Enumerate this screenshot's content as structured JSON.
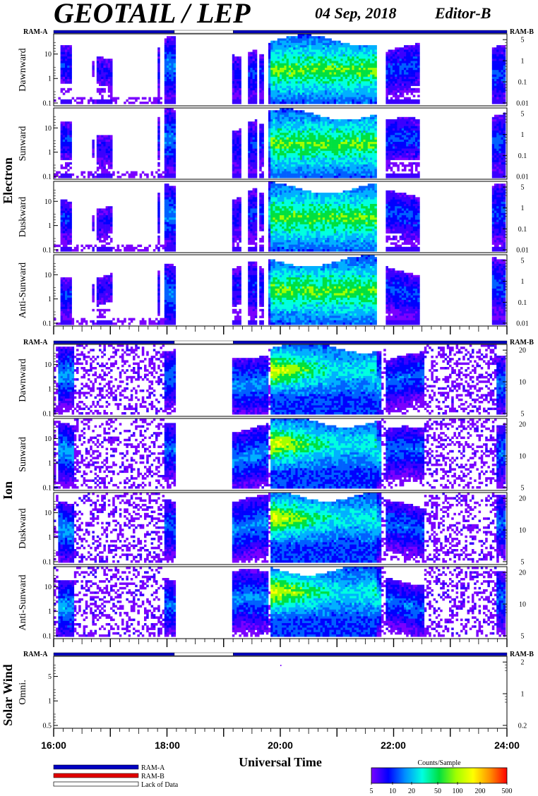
{
  "header": {
    "title": "GEOTAIL / LEP",
    "date": "04 Sep, 2018",
    "editor": "Editor-B"
  },
  "labels": {
    "ram_a": "RAM-A",
    "ram_b": "RAM-B",
    "x_axis_title": "Universal Time",
    "colorbar_title": "Counts/Sample"
  },
  "legend": [
    {
      "label": "RAM-A",
      "color": "#0000c0"
    },
    {
      "label": "RAM-B",
      "color": "#e00000"
    },
    {
      "label": "Lack of Data",
      "color": "#ffffff"
    }
  ],
  "chart_data": {
    "type": "heatmap",
    "x_ticks": [
      "16:00",
      "18:00",
      "20:00",
      "22:00",
      "24:00"
    ],
    "x_range_hours": [
      16,
      24
    ],
    "groups": [
      {
        "name": "Electron",
        "status_bar": [
          {
            "start": 16.0,
            "end": 18.13,
            "mode": "RAM-A"
          },
          {
            "start": 18.13,
            "end": 19.17,
            "mode": "Lack of Data"
          },
          {
            "start": 19.17,
            "end": 24.0,
            "mode": "RAM-A"
          }
        ],
        "panels": [
          {
            "name": "Dawnward",
            "left_ticks": [
              "10",
              "1",
              "0.1"
            ],
            "right_ticks": [
              "5",
              "1",
              "0.1",
              "0.01"
            ]
          },
          {
            "name": "Sunward",
            "left_ticks": [
              "10",
              "1",
              "0.1"
            ],
            "right_ticks": [
              "5",
              "1",
              "0.1",
              "0.01"
            ]
          },
          {
            "name": "Duskward",
            "left_ticks": [
              "10",
              "1",
              "0.1"
            ],
            "right_ticks": [
              "5",
              "1",
              "0.1",
              "0.01"
            ]
          },
          {
            "name": "Anti-Sunward",
            "left_ticks": [
              "10",
              "1",
              "0.1"
            ],
            "right_ticks": [
              "5",
              "1",
              "0.1",
              "0.01"
            ]
          }
        ]
      },
      {
        "name": "Ion",
        "status_bar": [
          {
            "start": 16.0,
            "end": 18.13,
            "mode": "RAM-A"
          },
          {
            "start": 18.13,
            "end": 19.17,
            "mode": "Lack of Data"
          },
          {
            "start": 19.17,
            "end": 24.0,
            "mode": "RAM-A"
          }
        ],
        "panels": [
          {
            "name": "Dawnward",
            "left_ticks": [
              "10",
              "1",
              "0.1"
            ],
            "right_ticks": [
              "20",
              "10",
              "5"
            ]
          },
          {
            "name": "Sunward",
            "left_ticks": [
              "10",
              "1",
              "0.1"
            ],
            "right_ticks": [
              "20",
              "10",
              "5"
            ]
          },
          {
            "name": "Duskward",
            "left_ticks": [
              "10",
              "1",
              "0.1"
            ],
            "right_ticks": [
              "20",
              "10",
              "5"
            ]
          },
          {
            "name": "Anti-Sunward",
            "left_ticks": [
              "10",
              "1",
              "0.1"
            ],
            "right_ticks": [
              "20",
              "10",
              "5"
            ]
          }
        ]
      },
      {
        "name": "Solar Wind",
        "status_bar": [
          {
            "start": 16.0,
            "end": 18.13,
            "mode": "RAM-A"
          },
          {
            "start": 18.13,
            "end": 19.17,
            "mode": "Lack of Data"
          },
          {
            "start": 19.17,
            "end": 24.0,
            "mode": "RAM-A"
          }
        ],
        "panels": [
          {
            "name": "Omni.",
            "left_ticks": [
              "5",
              "1",
              "0.5"
            ],
            "right_ticks": [
              "2",
              "1",
              "0.2"
            ]
          }
        ]
      }
    ],
    "colorbar": {
      "ticks": [
        "5",
        "10",
        "20",
        "50",
        "100",
        "200",
        "500"
      ],
      "colors": [
        "#7a00ff",
        "#0000ff",
        "#0090ff",
        "#00ffe0",
        "#00e040",
        "#a0ff00",
        "#ffff00",
        "#ff9000",
        "#ff0000"
      ]
    }
  }
}
